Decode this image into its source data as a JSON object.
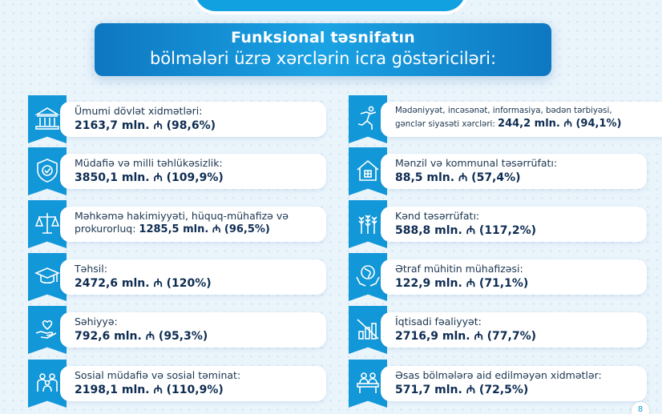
{
  "header": {
    "title_line1": "Funksional təsnifatın",
    "title_line2": "bölmələri üzrə xərclərin icra göstəriciləri:"
  },
  "left_items": [
    {
      "icon": "government-building-icon",
      "label": "Ümumi dövlət xidmətləri:",
      "value": "2163,7 mln. ₼ (98,6%)"
    },
    {
      "icon": "shield-check-icon",
      "label": "Müdafiə və milli təhlükəsizlik:",
      "value": "3850,1 mln. ₼ (109,9%)"
    },
    {
      "icon": "scales-of-justice-icon",
      "label": "Məhkəmə hakimiyyəti, hüquq-mühafizə və",
      "label2": "prokurorluq:",
      "value": "1285,5 mln. ₼ (96,5%)"
    },
    {
      "icon": "graduation-cap-icon",
      "label": "Təhsil:",
      "value": "2472,6 mln. ₼ (120%)"
    },
    {
      "icon": "heart-in-hand-icon",
      "label": "Səhiyyə:",
      "value": "792,6 mln. ₼ (95,3%)"
    },
    {
      "icon": "family-people-icon",
      "label": "Sosial müdafiə və sosial təminat:",
      "value": "2198,1 mln. ₼ (110,9%)"
    }
  ],
  "right_items": [
    {
      "icon": "running-person-icon",
      "label": "Mədəniyyət, incəsənət, informasiya, bədən tərbiyəsi,",
      "label2": "gənclər siyasəti xərcləri:",
      "value": "244,2 mln. ₼ (94,1%)"
    },
    {
      "icon": "house-icon",
      "label": "Mənzil və kommunal təsərrüfatı:",
      "value": "88,5 mln. ₼ (57,4%)"
    },
    {
      "icon": "wheat-icon",
      "label": "Kənd təsərrüfatı:",
      "value": "588,8 mln. ₼ (117,2%)"
    },
    {
      "icon": "globe-in-hands-icon",
      "label": "Ətraf mühitin mühafizəsi:",
      "value": "122,9 mln. ₼ (71,1%)"
    },
    {
      "icon": "economy-chart-icon",
      "label": "İqtisadi fəaliyyət:",
      "value": "2716,9 mln. ₼ (77,7%)"
    },
    {
      "icon": "office-desk-icon",
      "label": "Əsas bölmələrə aid edilməyən xidmətlər:",
      "value": "571,7 mln. ₼ (72,5%)"
    }
  ],
  "footer": {
    "page_number": "8"
  },
  "colors": {
    "accent": "#1297d8",
    "banner": "#0e77c2",
    "background": "#eaf4fb",
    "value_text": "#0e2c52"
  }
}
